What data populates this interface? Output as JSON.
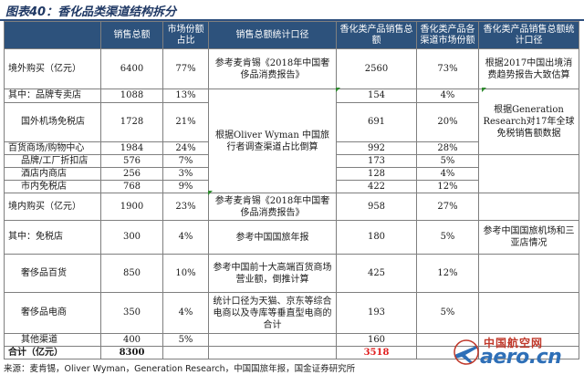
{
  "title": "图表40：香化品类渠道结构拆分",
  "headers": [
    "",
    "销售总额",
    "市场份额占比",
    "销售总额统计口径",
    "香化类产品销售总额",
    "香化类产品各渠道市场份额",
    "香化类产品销售总额统计口径"
  ],
  "rows": [
    {
      "label": "境外购买（亿元）",
      "sales": "6400",
      "share": "77%",
      "cosm_sales": "2560",
      "cosm_share": "73%"
    },
    {
      "label": "其中：品牌专卖店",
      "sales": "1088",
      "share": "13%",
      "cosm_sales": "154",
      "cosm_share": "4%"
    },
    {
      "label": "国外机场免税店",
      "sales": "1728",
      "share": "21%",
      "cosm_sales": "691",
      "cosm_share": "20%"
    },
    {
      "label": "百货商场/购物中心",
      "sales": "1984",
      "share": "24%",
      "cosm_sales": "992",
      "cosm_share": "28%"
    },
    {
      "label": "品牌/工厂折扣店",
      "sales": "576",
      "share": "7%",
      "cosm_sales": "173",
      "cosm_share": "5%"
    },
    {
      "label": "酒店内商店",
      "sales": "256",
      "share": "3%",
      "cosm_sales": "128",
      "cosm_share": "4%"
    },
    {
      "label": "市内免税店",
      "sales": "768",
      "share": "9%",
      "cosm_sales": "422",
      "cosm_share": "12%"
    },
    {
      "label": "境内购买（亿元）",
      "sales": "1900",
      "share": "23%",
      "cosm_sales": "958",
      "cosm_share": "27%"
    },
    {
      "label": "其中：免税店",
      "sales": "300",
      "share": "4%",
      "cosm_sales": "180",
      "cosm_share": "5%"
    },
    {
      "label": "奢侈品百货",
      "sales": "850",
      "share": "10%",
      "cosm_sales": "425",
      "cosm_share": "12%"
    },
    {
      "label": "奢侈品电商",
      "sales": "350",
      "share": "4%",
      "cosm_sales": "193",
      "cosm_share": "5%"
    },
    {
      "label": "其他渠道",
      "sales": "400",
      "share": "5%",
      "cosm_sales": "160",
      "cosm_share": ""
    },
    {
      "label": "合计（亿元）",
      "sales": "8300",
      "share": "",
      "cosm_sales": "3518",
      "cosm_share": ""
    }
  ],
  "sources": {
    "s1": "参考麦肯锡《2018年中国奢侈品消费报告》",
    "s2": "根据Oliver Wyman 中国旅行者调查渠道占比倒算",
    "s3": "参考麦肯锡《2018年中国奢侈品消费报告》",
    "s4": "参考中国国旅年报",
    "s5": "参考中国前十大高端百货商场营业额，倒推计算",
    "s6": "统计口径为天猫、京东等综合电商以及寺库等垂直型电商的合计",
    "c1": "根据2017中国出境消费趋势报告大致估算",
    "c2": "根据Generation Research对17年全球免税销售额数据",
    "c3": "参考中国国旅机场和三亚店情况"
  },
  "footer": "来源：麦肯锡，Oliver Wyman，Generation Research，中国国旅年报，国金证券研究所",
  "watermark": {
    "cn": "中国航空网",
    "en": "aero.cn"
  },
  "colors": {
    "header_bg": "#2d527c",
    "total_red": "#e02020"
  }
}
